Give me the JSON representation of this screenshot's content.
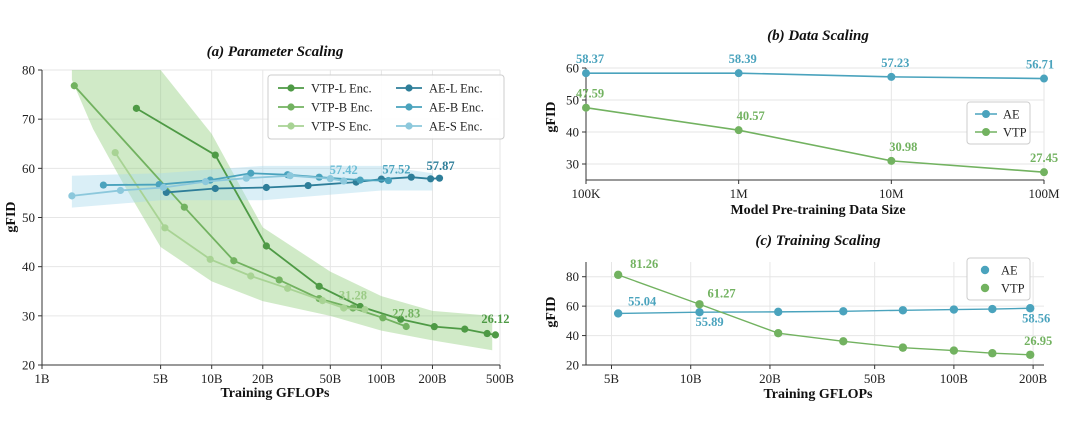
{
  "chart_data": [
    {
      "id": "a",
      "type": "line",
      "title": "(a) Parameter Scaling",
      "xlabel": "Training GFLOPs",
      "ylabel": "gFID",
      "xscale": "log",
      "xlim": [
        1,
        500
      ],
      "ylim": [
        20,
        80
      ],
      "xticks": [
        1,
        5,
        10,
        20,
        50,
        100,
        200,
        500
      ],
      "xtick_labels": [
        "1B",
        "5B",
        "10B",
        "20B",
        "50B",
        "100B",
        "200B",
        "500B"
      ],
      "yticks": [
        20,
        30,
        40,
        50,
        60,
        70,
        80
      ],
      "ytick_labels": [
        "20",
        "30",
        "40",
        "50",
        "60",
        "70",
        "80"
      ],
      "legend_position": "top-right",
      "series": [
        {
          "name": "VTP-L Enc.",
          "color": "#4e9a45",
          "x": [
            3.6,
            10.5,
            21,
            43,
            75,
            130,
            205,
            310,
            420,
            470
          ],
          "y": [
            72.2,
            62.7,
            44.2,
            36.0,
            31.9,
            29.3,
            27.8,
            27.3,
            26.4,
            26.12
          ]
        },
        {
          "name": "VTP-B Enc.",
          "color": "#72b260",
          "x": [
            1.55,
            6.9,
            13.5,
            25,
            43,
            68,
            102,
            140
          ],
          "y": [
            76.8,
            52.1,
            41.2,
            37.3,
            33.5,
            31.6,
            29.6,
            27.83
          ]
        },
        {
          "name": "VTP-S Enc.",
          "color": "#a8d394",
          "x": [
            2.7,
            5.3,
            9.8,
            17,
            28,
            45,
            60,
            80
          ],
          "y": [
            63.2,
            47.9,
            41.5,
            38.1,
            35.6,
            33.1,
            31.6,
            31.28
          ]
        },
        {
          "name": "AE-L Enc.",
          "color": "#2e7e99",
          "x": [
            5.4,
            10.5,
            21,
            37,
            71,
            100,
            150,
            195,
            220
          ],
          "y": [
            55.1,
            55.9,
            56.1,
            56.5,
            57.2,
            57.8,
            58.2,
            57.87,
            58.0
          ]
        },
        {
          "name": "AE-B Enc.",
          "color": "#4aa3bd",
          "x": [
            2.3,
            4.9,
            9.8,
            17,
            28,
            43,
            75,
            110
          ],
          "y": [
            56.6,
            56.7,
            57.6,
            59.0,
            58.7,
            58.2,
            57.6,
            57.52
          ]
        },
        {
          "name": "AE-S Enc.",
          "color": "#8cc8dc",
          "x": [
            1.5,
            2.9,
            5.2,
            9.2,
            16,
            29,
            50,
            60
          ],
          "y": [
            54.4,
            55.5,
            56.1,
            57.3,
            58.0,
            58.5,
            57.9,
            57.42
          ]
        }
      ],
      "bands": [
        {
          "series": "VTP",
          "color": "#8fcd7a",
          "x": [
            1.5,
            2,
            3,
            5,
            10,
            20,
            50,
            100,
            200,
            450
          ],
          "lower": [
            78,
            68,
            57,
            44,
            37,
            33,
            30,
            27,
            25,
            23
          ],
          "upper": [
            80,
            80,
            80,
            80,
            67,
            48,
            39,
            34,
            31,
            30
          ]
        },
        {
          "series": "AE",
          "color": "#a6d8ec",
          "x": [
            1.5,
            5,
            20,
            100,
            200
          ],
          "lower": [
            52,
            53.5,
            53.5,
            55.5,
            55.5
          ],
          "upper": [
            58.5,
            59,
            60.5,
            60.5,
            59
          ]
        }
      ],
      "annotations": [
        {
          "text": "57.42",
          "x": 60,
          "y": 57.42,
          "color": "#6bbdd6"
        },
        {
          "text": "57.52",
          "x": 110,
          "y": 57.52,
          "color": "#4aa3bd"
        },
        {
          "text": "57.87",
          "x": 195,
          "y": 57.87,
          "color": "#2e7e99"
        },
        {
          "text": "31.28",
          "x": 80,
          "y": 31.28,
          "color": "#9bcb86"
        },
        {
          "text": "27.83",
          "x": 140,
          "y": 27.83,
          "color": "#72b260"
        },
        {
          "text": "26.12",
          "x": 470,
          "y": 26.12,
          "color": "#4e9a45"
        }
      ]
    },
    {
      "id": "b",
      "type": "line",
      "title": "(b) Data Scaling",
      "xlabel": "Model Pre-training Data Size",
      "ylabel": "gFID",
      "xscale": "log",
      "xlim": [
        100000,
        100000000
      ],
      "ylim": [
        25,
        60
      ],
      "xticks": [
        100000,
        1000000,
        10000000,
        100000000
      ],
      "xtick_labels": [
        "100K",
        "1M",
        "10M",
        "100M"
      ],
      "yticks": [
        30,
        40,
        50,
        60
      ],
      "ytick_labels": [
        "30",
        "40",
        "50",
        "60"
      ],
      "legend_position": "center-right",
      "series": [
        {
          "name": "AE",
          "color": "#4aa3bd",
          "x": [
            100000,
            1000000,
            10000000,
            100000000
          ],
          "y": [
            58.37,
            58.39,
            57.23,
            56.71
          ],
          "labels": [
            "58.37",
            "58.39",
            "57.23",
            "56.71"
          ]
        },
        {
          "name": "VTP",
          "color": "#72b260",
          "x": [
            100000,
            1000000,
            10000000,
            100000000
          ],
          "y": [
            47.59,
            40.57,
            30.98,
            27.45
          ],
          "labels": [
            "47.59",
            "40.57",
            "30.98",
            "27.45"
          ]
        }
      ]
    },
    {
      "id": "c",
      "type": "line",
      "title": "(c) Training Scaling",
      "xlabel": "Training GFLOPs",
      "ylabel": "gFID",
      "xscale": "log",
      "xlim": [
        4,
        220
      ],
      "ylim": [
        20,
        90
      ],
      "xticks": [
        5,
        10,
        20,
        50,
        100,
        200
      ],
      "xtick_labels": [
        "5B",
        "10B",
        "20B",
        "50B",
        "100B",
        "200B"
      ],
      "yticks": [
        20,
        40,
        60,
        80
      ],
      "ytick_labels": [
        "20",
        "40",
        "60",
        "80"
      ],
      "legend_position": "top-right",
      "series": [
        {
          "name": "AE",
          "color": "#4aa3bd",
          "x": [
            5.3,
            10.8,
            21.5,
            38,
            64,
            100,
            140,
            195
          ],
          "y": [
            55.04,
            55.89,
            56.1,
            56.5,
            57.2,
            57.7,
            58.0,
            58.56
          ],
          "labels": [
            "55.04",
            "55.89",
            "",
            "",
            "",
            "",
            "",
            "58.56"
          ]
        },
        {
          "name": "VTP",
          "color": "#72b260",
          "x": [
            5.3,
            10.8,
            21.5,
            38,
            64,
            100,
            140,
            195
          ],
          "y": [
            81.26,
            61.27,
            41.6,
            36.1,
            31.8,
            29.8,
            28.0,
            26.95
          ],
          "labels": [
            "81.26",
            "61.27",
            "",
            "",
            "",
            "",
            "",
            "26.95"
          ]
        }
      ]
    }
  ]
}
